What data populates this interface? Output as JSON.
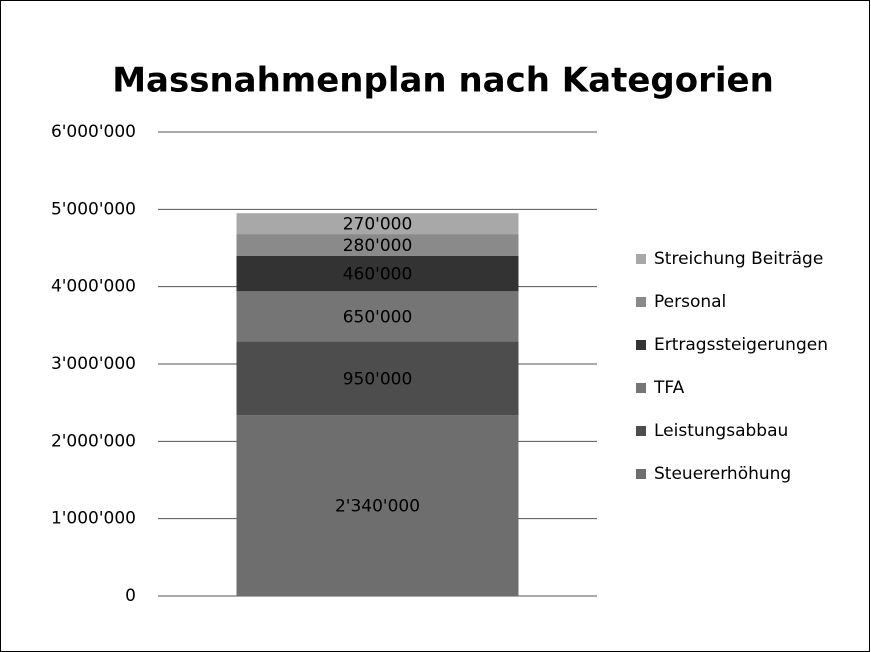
{
  "chart_data": {
    "type": "stacked_bar",
    "title": "Massnahmenplan nach Kategorien",
    "categories": [
      null
    ],
    "series": [
      {
        "name": "Steuererhöhung",
        "color": "#6e6e6e",
        "values": [
          2340000
        ],
        "value_labels": [
          "2'340'000"
        ]
      },
      {
        "name": "Leistungsabbau",
        "color": "#4d4d4d",
        "values": [
          950000
        ],
        "value_labels": [
          "950'000"
        ]
      },
      {
        "name": "TFA",
        "color": "#757575",
        "values": [
          650000
        ],
        "value_labels": [
          "650'000"
        ]
      },
      {
        "name": "Ertragssteigerungen",
        "color": "#333333",
        "values": [
          460000
        ],
        "value_labels": [
          "460'000"
        ]
      },
      {
        "name": "Personal",
        "color": "#8a8a8a",
        "values": [
          280000
        ],
        "value_labels": [
          "280'000"
        ]
      },
      {
        "name": "Streichung Beiträge",
        "color": "#a8a8a8",
        "values": [
          270000
        ],
        "value_labels": [
          "270'000"
        ]
      }
    ],
    "ylim": [
      0,
      6000000
    ],
    "yticks": [
      0,
      {
        "value": 1000000,
        "label": "1'000'000"
      },
      {
        "value": 2000000,
        "label": "2'000'000"
      },
      {
        "value": 3000000,
        "label": "3'000'000"
      },
      {
        "value": 4000000,
        "label": "4'000'000"
      },
      {
        "value": 5000000,
        "label": "5'000'000"
      },
      {
        "value": 6000000,
        "label": "6'000'000"
      }
    ],
    "grid": true,
    "legend": "right"
  }
}
